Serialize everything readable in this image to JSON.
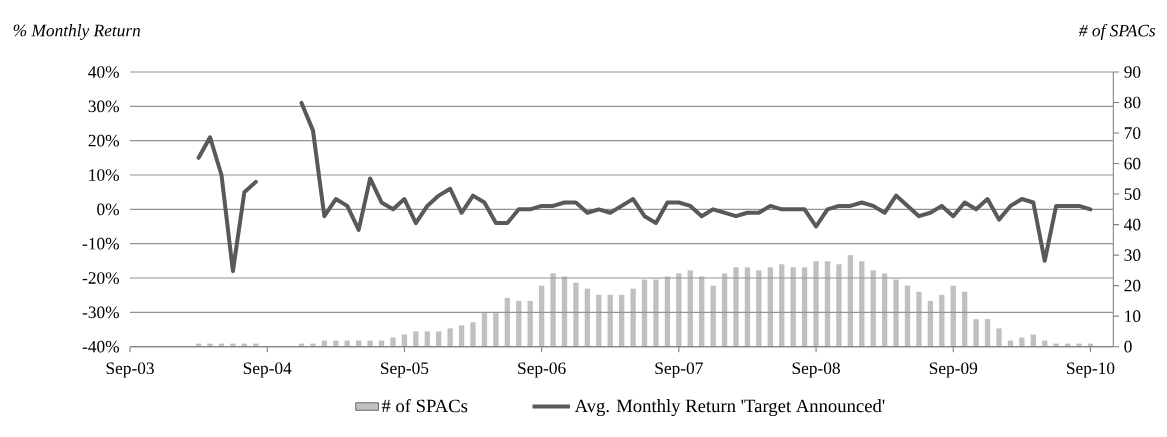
{
  "chart_data": {
    "type": "line",
    "ylabel": "% Monthly Return",
    "y2label": "# of SPACs",
    "x": [
      "2004-03",
      "2004-04",
      "2004-05",
      "2004-06",
      "2004-07",
      "2004-08",
      "2004-09",
      "2004-10",
      "2004-11",
      "2004-12",
      "2005-01",
      "2005-02",
      "2005-03",
      "2005-04",
      "2005-05",
      "2005-06",
      "2005-07",
      "2005-08",
      "2005-09",
      "2005-10",
      "2005-11",
      "2005-12",
      "2006-01",
      "2006-02",
      "2006-03",
      "2006-04",
      "2006-05",
      "2006-06",
      "2006-07",
      "2006-08",
      "2006-09",
      "2006-10",
      "2006-11",
      "2006-12",
      "2007-01",
      "2007-02",
      "2007-03",
      "2007-04",
      "2007-05",
      "2007-06",
      "2007-07",
      "2007-08",
      "2007-09",
      "2007-10",
      "2007-11",
      "2007-12",
      "2008-01",
      "2008-02",
      "2008-03",
      "2008-04",
      "2008-05",
      "2008-06",
      "2008-07",
      "2008-08",
      "2008-09",
      "2008-10",
      "2008-11",
      "2008-12",
      "2009-01",
      "2009-02",
      "2009-03",
      "2009-04",
      "2009-05",
      "2009-06",
      "2009-07",
      "2009-08",
      "2009-09",
      "2009-10",
      "2009-11",
      "2009-12",
      "2010-01",
      "2010-02",
      "2010-03",
      "2010-04",
      "2010-05",
      "2010-06",
      "2010-07",
      "2010-08",
      "2010-09"
    ],
    "series": [
      {
        "name": "# of SPACs",
        "type": "bar",
        "axis": "y2",
        "color": "#c0c0c0",
        "values": [
          1,
          1,
          1,
          1,
          1,
          1,
          null,
          null,
          null,
          1,
          1,
          2,
          2,
          2,
          2,
          2,
          2,
          3,
          4,
          5,
          5,
          5,
          6,
          7,
          8,
          11,
          11,
          16,
          15,
          15,
          20,
          24,
          23,
          21,
          19,
          17,
          17,
          17,
          19,
          22,
          22,
          23,
          24,
          25,
          23,
          20,
          24,
          26,
          26,
          25,
          26,
          27,
          26,
          26,
          28,
          28,
          27,
          30,
          28,
          25,
          24,
          22,
          20,
          18,
          15,
          17,
          20,
          18,
          9,
          9,
          6,
          2,
          3,
          4,
          2,
          1,
          1,
          1,
          1
        ]
      },
      {
        "name": "Avg. Monthly Return 'Target Announced'",
        "color": "#595959",
        "values": [
          15,
          21,
          10,
          -18,
          5,
          8,
          null,
          null,
          null,
          31,
          23,
          -2,
          3,
          1,
          -6,
          9,
          2,
          0,
          3,
          -4,
          1,
          4,
          6,
          -1,
          4,
          2,
          -4,
          -4,
          0,
          0,
          1,
          1,
          2,
          2,
          -1,
          0,
          -1,
          1,
          3,
          -2,
          -4,
          2,
          2,
          1,
          -2,
          0,
          -1,
          -2,
          -1,
          -1,
          1,
          0,
          0,
          0,
          -5,
          0,
          1,
          1,
          2,
          1,
          -1,
          4,
          1,
          -2,
          -1,
          1,
          -2,
          2,
          0,
          3,
          -3,
          1,
          3,
          2,
          -15,
          1,
          1,
          1,
          0
        ]
      }
    ],
    "xlim": [
      "2003-09",
      "2010-11"
    ],
    "xticks": [
      {
        "value": "2003-09",
        "label": "Sep-03"
      },
      {
        "value": "2004-09",
        "label": "Sep-04"
      },
      {
        "value": "2005-09",
        "label": "Sep-05"
      },
      {
        "value": "2006-09",
        "label": "Sep-06"
      },
      {
        "value": "2007-09",
        "label": "Sep-07"
      },
      {
        "value": "2008-09",
        "label": "Sep-08"
      },
      {
        "value": "2009-09",
        "label": "Sep-09"
      },
      {
        "value": "2010-09",
        "label": "Sep-10"
      }
    ],
    "ylim": [
      -40,
      40
    ],
    "yticks": [
      {
        "value": -40,
        "label": "-40%"
      },
      {
        "value": -30,
        "label": "-30%"
      },
      {
        "value": -20,
        "label": "-20%"
      },
      {
        "value": -10,
        "label": "-10%"
      },
      {
        "value": 0,
        "label": "0%"
      },
      {
        "value": 10,
        "label": "10%"
      },
      {
        "value": 20,
        "label": "20%"
      },
      {
        "value": 30,
        "label": "30%"
      },
      {
        "value": 40,
        "label": "40%"
      }
    ],
    "y2lim": [
      0,
      90
    ],
    "y2ticks": [
      0,
      10,
      20,
      30,
      40,
      50,
      60,
      70,
      80,
      90
    ],
    "grid": "y",
    "legend": "bottom"
  }
}
